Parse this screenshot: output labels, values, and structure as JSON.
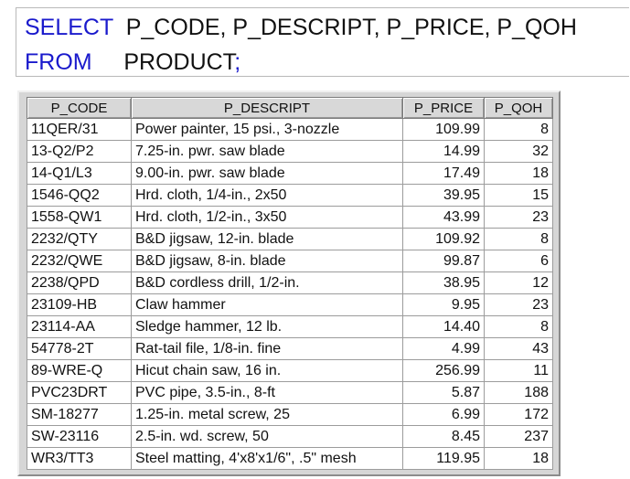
{
  "query": {
    "select_keyword": "SELECT",
    "select_columns": "P_CODE, P_DESCRIPT, P_PRICE, P_QOH",
    "from_keyword": "FROM",
    "from_table": "PRODUCT",
    "terminator": ";"
  },
  "result": {
    "columns": [
      "P_CODE",
      "P_DESCRIPT",
      "P_PRICE",
      "P_QOH"
    ],
    "rows": [
      [
        "11QER/31",
        "Power painter, 15 psi., 3-nozzle",
        "109.99",
        "8"
      ],
      [
        "13-Q2/P2",
        "7.25-in. pwr. saw blade",
        "14.99",
        "32"
      ],
      [
        "14-Q1/L3",
        "9.00-in. pwr. saw blade",
        "17.49",
        "18"
      ],
      [
        "1546-QQ2",
        "Hrd. cloth, 1/4-in., 2x50",
        "39.95",
        "15"
      ],
      [
        "1558-QW1",
        "Hrd. cloth, 1/2-in., 3x50",
        "43.99",
        "23"
      ],
      [
        "2232/QTY",
        "B&D jigsaw, 12-in. blade",
        "109.92",
        "8"
      ],
      [
        "2232/QWE",
        "B&D jigsaw, 8-in. blade",
        "99.87",
        "6"
      ],
      [
        "2238/QPD",
        "B&D cordless drill, 1/2-in.",
        "38.95",
        "12"
      ],
      [
        "23109-HB",
        "Claw hammer",
        "9.95",
        "23"
      ],
      [
        "23114-AA",
        "Sledge hammer, 12 lb.",
        "14.40",
        "8"
      ],
      [
        "54778-2T",
        "Rat-tail file, 1/8-in. fine",
        "4.99",
        "43"
      ],
      [
        "89-WRE-Q",
        "Hicut chain saw, 16 in.",
        "256.99",
        "11"
      ],
      [
        "PVC23DRT",
        "PVC pipe, 3.5-in., 8-ft",
        "5.87",
        "188"
      ],
      [
        "SM-18277",
        "1.25-in. metal screw, 25",
        "6.99",
        "172"
      ],
      [
        "SW-23116",
        "2.5-in. wd. screw, 50",
        "8.45",
        "237"
      ],
      [
        "WR3/TT3",
        "Steel matting, 4'x8'x1/6\", .5\" mesh",
        "119.95",
        "18"
      ]
    ]
  }
}
